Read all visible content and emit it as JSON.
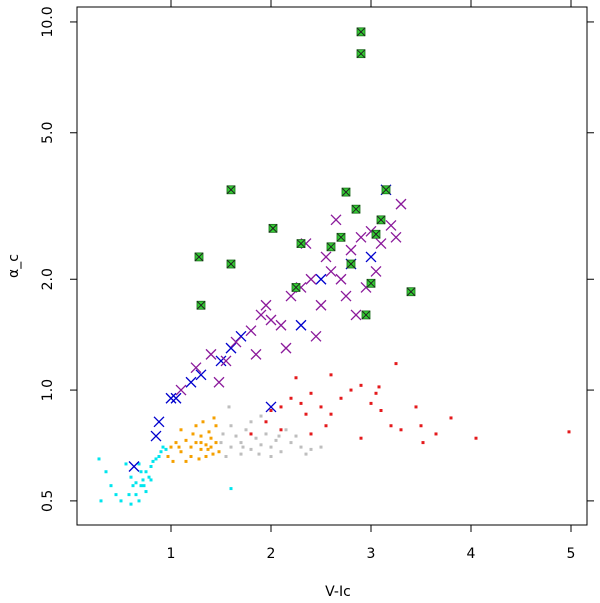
{
  "chart_data": {
    "type": "scatter",
    "x_label": "V-Ic",
    "y_label": "α_c",
    "ylog": true,
    "xlim": [
      0.06,
      5.16
    ],
    "ylim": [
      0.43,
      10.98
    ],
    "xticks": [
      1,
      2,
      3,
      4,
      5
    ],
    "yticks": [
      0.5,
      {
        "value": 1,
        "label": "1.0"
      },
      {
        "value": 2,
        "label": "2.0"
      },
      {
        "value": 5,
        "label": "5.0"
      },
      {
        "value": 10,
        "label": "10.0"
      }
    ],
    "series": [
      {
        "color": "#00e5ee",
        "marker": "dot",
        "x": [
          0.55,
          0.6,
          0.62,
          0.65,
          0.68,
          0.7,
          0.72,
          0.75,
          0.78,
          0.8,
          0.82,
          0.85,
          0.88,
          0.9,
          0.92,
          0.7,
          0.75,
          0.65,
          0.58,
          0.5,
          0.45,
          0.4,
          0.3,
          0.28,
          0.35,
          0.8,
          0.95,
          0.6,
          0.68,
          0.73,
          1.6
        ],
        "values": [
          0.63,
          0.58,
          0.55,
          0.52,
          0.5,
          0.55,
          0.57,
          0.6,
          0.58,
          0.62,
          0.64,
          0.65,
          0.66,
          0.68,
          0.7,
          0.6,
          0.53,
          0.56,
          0.52,
          0.5,
          0.52,
          0.55,
          0.5,
          0.65,
          0.6,
          0.57,
          0.69,
          0.49,
          0.63,
          0.55,
          0.54
        ]
      },
      {
        "color": "#f5a000",
        "marker": "dot",
        "x": [
          1.0,
          1.05,
          1.1,
          1.15,
          1.2,
          1.25,
          1.3,
          1.35,
          1.4,
          1.45,
          1.3,
          1.2,
          1.35,
          1.42,
          1.1,
          1.25,
          1.32,
          1.38,
          1.45,
          0.97,
          1.02,
          1.15,
          1.28,
          1.4,
          1.37,
          1.22,
          1.08,
          1.48,
          1.43,
          1.3
        ],
        "values": [
          0.7,
          0.72,
          0.68,
          0.73,
          0.7,
          0.72,
          0.69,
          0.71,
          0.7,
          0.72,
          0.75,
          0.66,
          0.66,
          0.67,
          0.78,
          0.8,
          0.82,
          0.77,
          0.8,
          0.66,
          0.64,
          0.64,
          0.65,
          0.74,
          0.69,
          0.76,
          0.7,
          0.68,
          0.84,
          0.72
        ]
      },
      {
        "color": "#bebebe",
        "marker": "dot",
        "x": [
          1.5,
          1.6,
          1.7,
          1.8,
          1.9,
          2.0,
          2.1,
          2.2,
          2.3,
          2.4,
          1.65,
          1.75,
          1.85,
          1.95,
          2.05,
          1.55,
          1.7,
          2.0,
          2.15,
          1.8,
          1.6,
          1.9,
          2.25,
          2.5,
          1.58,
          2.35,
          1.72,
          1.88,
          2.08,
          1.52
        ],
        "values": [
          0.72,
          0.7,
          0.72,
          0.69,
          0.71,
          0.7,
          0.68,
          0.72,
          0.7,
          0.69,
          0.75,
          0.78,
          0.74,
          0.76,
          0.73,
          0.66,
          0.67,
          0.66,
          0.78,
          0.82,
          0.8,
          0.85,
          0.75,
          0.7,
          0.9,
          0.67,
          0.7,
          0.67,
          0.75,
          0.76
        ]
      },
      {
        "color": "#e41a1c",
        "marker": "dot",
        "x": [
          2.0,
          2.1,
          2.2,
          2.3,
          2.4,
          2.5,
          2.6,
          2.7,
          2.8,
          2.9,
          3.0,
          3.1,
          3.2,
          3.3,
          3.5,
          3.65,
          3.8,
          4.05,
          4.98,
          2.25,
          2.6,
          3.08,
          3.45,
          2.1,
          2.4,
          2.9,
          1.8,
          1.95,
          3.25,
          3.05,
          2.55,
          2.35,
          3.52
        ],
        "values": [
          0.88,
          0.9,
          0.95,
          0.92,
          0.98,
          0.9,
          0.86,
          0.95,
          1.0,
          1.03,
          0.92,
          0.88,
          0.8,
          0.78,
          0.8,
          0.76,
          0.84,
          0.74,
          0.77,
          1.08,
          1.1,
          1.02,
          0.9,
          0.78,
          0.76,
          0.74,
          0.76,
          0.82,
          1.18,
          0.98,
          0.8,
          0.86,
          0.72
        ]
      },
      {
        "color": "#0000cd",
        "marker": "x",
        "x": [
          0.63,
          0.85,
          0.88,
          1.0,
          1.05,
          1.2,
          1.3,
          1.5,
          1.6,
          1.7,
          2.3,
          2.5,
          2.8,
          3.15,
          3.0,
          2.0
        ],
        "values": [
          0.62,
          0.75,
          0.82,
          0.95,
          0.95,
          1.05,
          1.1,
          1.2,
          1.3,
          1.4,
          1.5,
          2.0,
          2.2,
          3.5,
          2.3,
          0.9
        ]
      },
      {
        "color": "#8b1a9b",
        "marker": "x",
        "x": [
          1.1,
          1.25,
          1.4,
          1.55,
          1.65,
          1.8,
          1.9,
          2.0,
          2.1,
          2.2,
          2.3,
          2.4,
          2.5,
          2.55,
          2.6,
          2.7,
          2.75,
          2.8,
          2.85,
          2.9,
          2.95,
          3.0,
          3.05,
          3.1,
          3.2,
          3.3,
          2.35,
          2.65,
          1.95,
          2.15,
          1.85,
          1.48,
          2.45,
          3.25
        ],
        "values": [
          1.0,
          1.15,
          1.25,
          1.2,
          1.35,
          1.45,
          1.6,
          1.55,
          1.5,
          1.8,
          1.9,
          2.0,
          1.7,
          2.3,
          2.1,
          2.0,
          1.8,
          2.4,
          1.6,
          2.6,
          1.9,
          2.7,
          2.1,
          2.5,
          2.8,
          3.2,
          2.5,
          2.9,
          1.7,
          1.3,
          1.25,
          1.05,
          1.4,
          2.6
        ]
      },
      {
        "color": "#33cc33",
        "marker": "box",
        "x": [
          2.9,
          2.9,
          1.6,
          1.28,
          1.6,
          2.02,
          1.3,
          2.75,
          3.15,
          2.85,
          3.1,
          3.4,
          2.3,
          2.8,
          3.05,
          2.7,
          2.95,
          2.25,
          3.0,
          2.6
        ],
        "values": [
          9.4,
          8.2,
          3.5,
          2.3,
          2.2,
          2.75,
          1.7,
          3.45,
          3.5,
          3.1,
          2.9,
          1.85,
          2.5,
          2.2,
          2.65,
          2.6,
          1.6,
          1.9,
          1.95,
          2.45
        ]
      }
    ]
  }
}
